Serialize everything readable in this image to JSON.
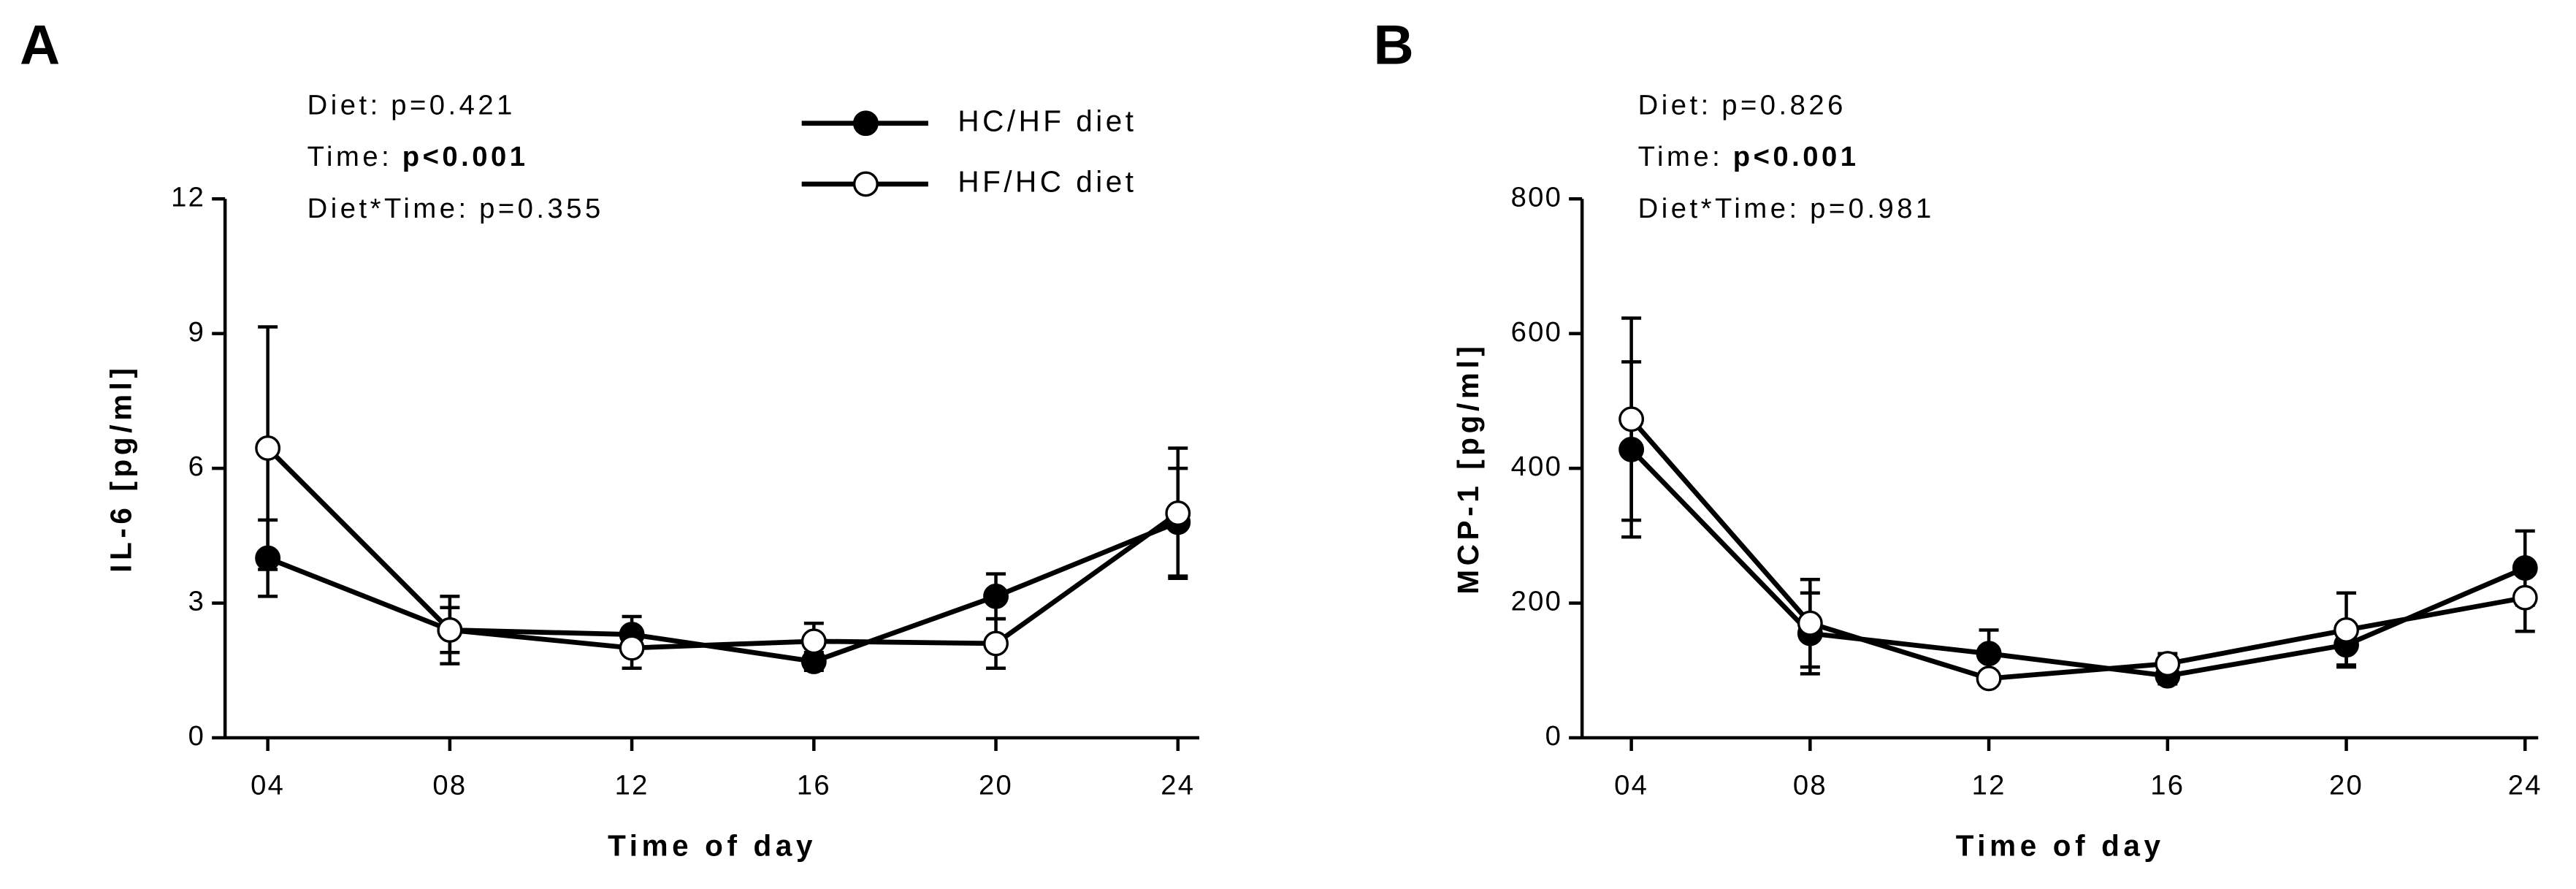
{
  "chart_data": [
    {
      "type": "line",
      "panel_label": "A",
      "y_label": "IL-6 [pg/ml]",
      "x_label": "Time of day",
      "categories": [
        "04",
        "08",
        "12",
        "16",
        "20",
        "24"
      ],
      "ylim": [
        0,
        12
      ],
      "yticks": [
        0,
        3,
        6,
        9,
        12
      ],
      "legend": true,
      "stats": [
        {
          "label": "Diet:",
          "value": "p=0.421",
          "bold": false
        },
        {
          "label": "Time:",
          "value": "p<0.001",
          "bold": true
        },
        {
          "label": "Diet*Time:",
          "value": "p=0.355",
          "bold": false
        }
      ],
      "series": [
        {
          "name": "HC/HF diet",
          "color": "#000000",
          "values": [
            4.0,
            2.4,
            2.3,
            1.7,
            3.15,
            4.8
          ],
          "errors": [
            0.85,
            0.5,
            0.4,
            0.2,
            0.5,
            1.2
          ]
        },
        {
          "name": "HF/HC diet",
          "color": "#ffffff",
          "values": [
            6.45,
            2.4,
            2.0,
            2.15,
            2.1,
            5.0
          ],
          "errors": [
            2.7,
            0.75,
            0.45,
            0.4,
            0.55,
            1.45
          ]
        }
      ]
    },
    {
      "type": "line",
      "panel_label": "B",
      "y_label": "MCP-1 [pg/ml]",
      "x_label": "Time of day",
      "categories": [
        "04",
        "08",
        "12",
        "16",
        "20",
        "24"
      ],
      "ylim": [
        0,
        800
      ],
      "yticks": [
        0,
        200,
        400,
        600,
        800
      ],
      "legend": false,
      "stats": [
        {
          "label": "Diet:",
          "value": "p=0.826",
          "bold": false
        },
        {
          "label": "Time:",
          "value": "p<0.001",
          "bold": true
        },
        {
          "label": "Diet*Time:",
          "value": "p=0.981",
          "bold": false
        }
      ],
      "series": [
        {
          "name": "HC/HF diet",
          "color": "#000000",
          "values": [
            428,
            155,
            125,
            92,
            138,
            252
          ],
          "errors": [
            130,
            60,
            35,
            12,
            30,
            55
          ]
        },
        {
          "name": "HF/HC diet",
          "color": "#ffffff",
          "values": [
            473,
            170,
            88,
            110,
            160,
            208
          ],
          "errors": [
            150,
            65,
            10,
            15,
            55,
            50
          ]
        }
      ]
    }
  ]
}
